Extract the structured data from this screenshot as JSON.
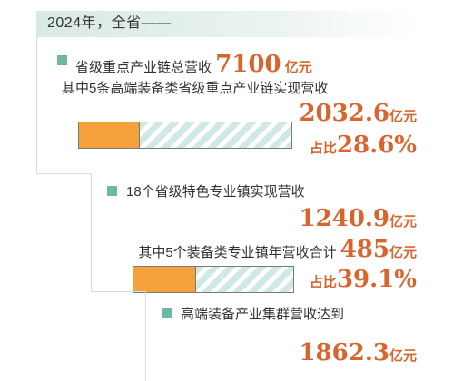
{
  "header": {
    "title": "2024年，全省——"
  },
  "colors": {
    "accent": "#d9652e",
    "bar_fill": "#f5a13c",
    "bullet": "#6fb8a8",
    "stripe": "#cfeae6"
  },
  "section1": {
    "label": "省级重点产业链总营收",
    "value": "7100",
    "unit": "亿元",
    "sub_label": "其中5条高端装备类省级重点产业链实现营收",
    "sub_value": "2032.6",
    "sub_unit": "亿元",
    "share_label": "占比",
    "share_value": "28.6%",
    "share_fraction": 0.286
  },
  "section2": {
    "label": "18个省级特色专业镇实现营收",
    "value": "1240.9",
    "unit": "亿元",
    "sub_label": "其中5个装备类专业镇年营收合计",
    "sub_value": "485",
    "sub_unit": "亿元",
    "share_label": "占比",
    "share_value": "39.1%",
    "share_fraction": 0.391
  },
  "section3": {
    "label": "高端装备产业集群营收达到",
    "value": "1862.3",
    "unit": "亿元"
  }
}
